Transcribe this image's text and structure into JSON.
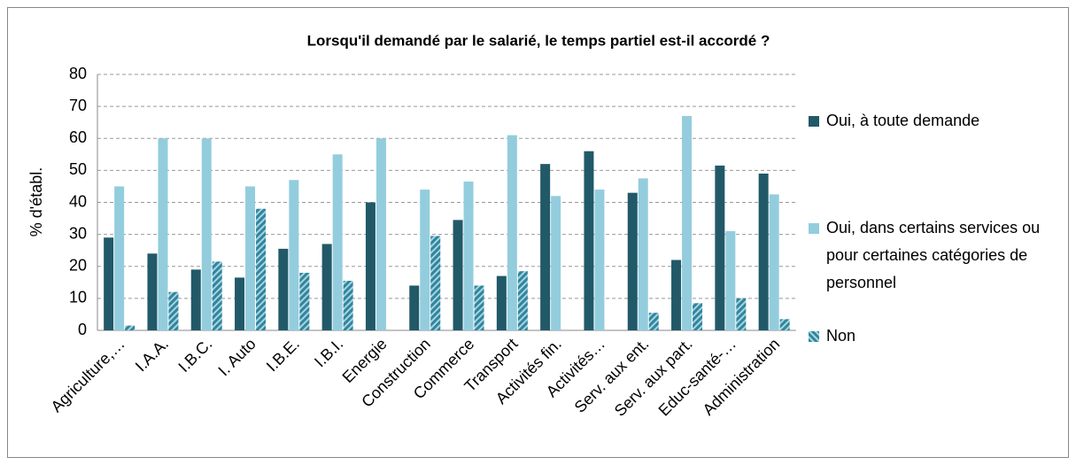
{
  "chart_data": {
    "type": "bar",
    "title": "Lorsqu'il demandé par le salarié, le temps partiel est-il accordé ?",
    "y_label": "% d'établ.",
    "categories": [
      "Agriculture,…",
      "I.A.A.",
      "I.B.C.",
      "I. Auto",
      "I.B.E.",
      "I.B.I.",
      "Energie",
      "Construction",
      "Commerce",
      "Transport",
      "Activités fin.",
      "Activités…",
      "Serv. aux ent.",
      "Serv. aux part.",
      "Educ-santé-…",
      "Administration"
    ],
    "series": [
      {
        "name": "Oui, à toute demande",
        "color": "#215968",
        "values": [
          29,
          24,
          19,
          16.5,
          25.5,
          27,
          40,
          14,
          34.5,
          17,
          52,
          56,
          43,
          22,
          51.5,
          49
        ]
      },
      {
        "name": "Oui, dans certains services ou pour certaines catégories de personnel",
        "color": "#93cddd",
        "values": [
          45,
          60,
          60,
          45,
          47,
          55,
          60,
          44,
          46.5,
          61,
          42,
          44,
          47.5,
          67,
          31,
          42.5
        ]
      },
      {
        "name": "Non",
        "color": "#31859c",
        "hatch": true,
        "values": [
          1.5,
          12,
          21.5,
          38,
          18,
          15.5,
          null,
          29.5,
          14,
          18.5,
          null,
          null,
          5.5,
          8.5,
          10,
          3.5
        ]
      }
    ],
    "ylim": [
      0,
      80
    ],
    "yticks": [
      0,
      10,
      20,
      30,
      40,
      50,
      60,
      70,
      80
    ],
    "grid": true,
    "legend": "right"
  }
}
